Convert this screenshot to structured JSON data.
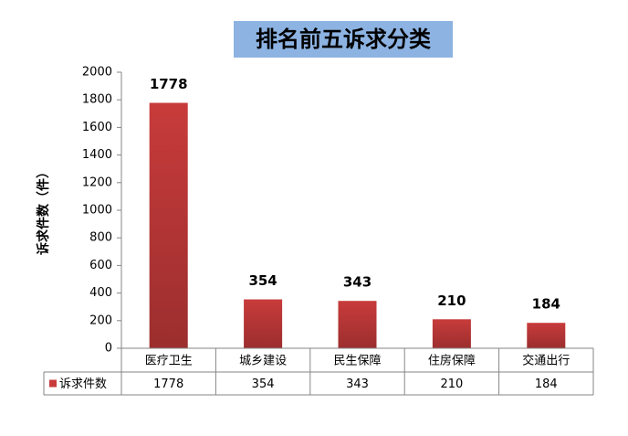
{
  "chart_data": {
    "type": "bar",
    "title": "排名前五诉求分类",
    "y_axis_label": "诉求件数（件）",
    "categories": [
      "医疗卫生",
      "城乡建设",
      "民生保障",
      "住房保障",
      "交通出行"
    ],
    "series": [
      {
        "name": "诉求件数",
        "color": "#c83b3b",
        "values": [
          1778,
          354,
          343,
          210,
          184
        ]
      }
    ],
    "ylim": [
      0,
      2000
    ],
    "yticks": [
      0,
      200,
      400,
      600,
      800,
      1000,
      1200,
      1400,
      1600,
      1800,
      2000
    ],
    "grid": false,
    "data_table": true
  }
}
